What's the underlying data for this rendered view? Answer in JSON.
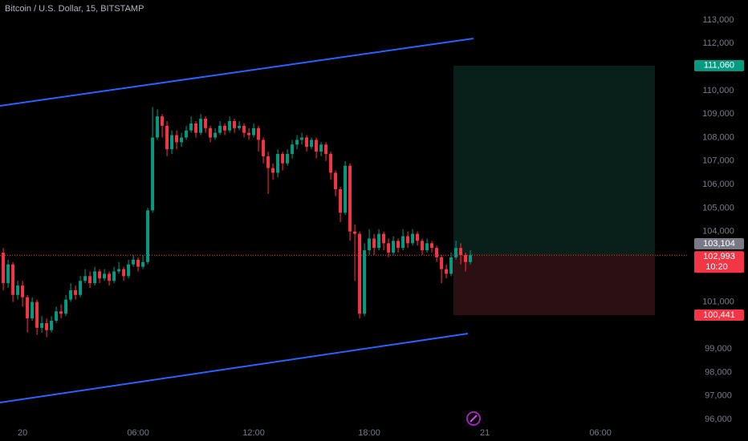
{
  "chart_data": {
    "type": "candlestick",
    "title": "Bitcoin / U.S. Dollar, 15, BITSTAMP",
    "up_color": "#089981",
    "down_color": "#f23645",
    "x": [
      -1,
      -0.75,
      -0.5,
      -0.25,
      0,
      0.25,
      0.5,
      0.75,
      1,
      1.25,
      1.5,
      1.75,
      2,
      2.25,
      2.5,
      2.75,
      3,
      3.25,
      3.5,
      3.75,
      4,
      4.25,
      4.5,
      4.75,
      5,
      5.25,
      5.5,
      5.75,
      6,
      6.25,
      6.5,
      6.75,
      7,
      7.25,
      7.5,
      7.75,
      8,
      8.25,
      8.5,
      8.75,
      9,
      9.25,
      9.5,
      9.75,
      10,
      10.25,
      10.5,
      10.75,
      11,
      11.25,
      11.5,
      11.75,
      12,
      12.25,
      12.5,
      12.75,
      13,
      13.25,
      13.5,
      13.75,
      14,
      14.25,
      14.5,
      14.75,
      15,
      15.25,
      15.5,
      15.75,
      16,
      16.25,
      16.5,
      16.75,
      17,
      17.25,
      17.5,
      17.75,
      18,
      18.25,
      18.5,
      18.75,
      19,
      19.25,
      19.5,
      19.75,
      20,
      20.25,
      20.5,
      20.75,
      21,
      21.25,
      21.5,
      21.75,
      22,
      22.25,
      22.5,
      22.75,
      23,
      23.25
    ],
    "open": [
      103100,
      101800,
      102600,
      101300,
      101700,
      101200,
      100300,
      101000,
      99900,
      100100,
      99800,
      100200,
      100600,
      100500,
      101100,
      101500,
      101300,
      101900,
      102100,
      101800,
      102300,
      102000,
      102200,
      101900,
      102300,
      102400,
      102100,
      102600,
      102800,
      102500,
      102700,
      104900,
      108000,
      108900,
      108500,
      107500,
      108100,
      107800,
      108000,
      108300,
      108600,
      108200,
      108800,
      108400,
      108000,
      108200,
      108500,
      108300,
      108700,
      108400,
      108500,
      108200,
      108100,
      108400,
      107900,
      107200,
      106700,
      106500,
      107300,
      106900,
      107300,
      107700,
      107900,
      108000,
      107600,
      107900,
      107400,
      107700,
      107300,
      106500,
      105800,
      104800,
      106800,
      104000,
      103900,
      100500,
      103200,
      103700,
      103300,
      103900,
      103500,
      103100,
      103600,
      103300,
      103800,
      103500,
      103900,
      103600,
      103200,
      103500,
      103300,
      102900,
      102400,
      102200,
      102900,
      103300,
      103000,
      102700
    ],
    "high": [
      103300,
      102800,
      102700,
      101900,
      101900,
      101300,
      101200,
      101100,
      100400,
      100300,
      100400,
      100800,
      100900,
      101300,
      101800,
      101700,
      102100,
      102400,
      102300,
      102500,
      102400,
      102400,
      102300,
      102500,
      102700,
      102500,
      102800,
      103000,
      102900,
      103000,
      105000,
      109300,
      109200,
      109000,
      108700,
      108300,
      108300,
      108200,
      108500,
      108900,
      108700,
      109000,
      108900,
      108500,
      108400,
      108700,
      108600,
      108900,
      108800,
      108700,
      108600,
      108400,
      108600,
      108500,
      108000,
      107400,
      106900,
      107500,
      107400,
      107500,
      107900,
      108100,
      108200,
      108100,
      108000,
      108000,
      107800,
      107800,
      107400,
      106600,
      105900,
      107000,
      106900,
      104300,
      104000,
      103500,
      104100,
      103900,
      104100,
      104000,
      103700,
      103800,
      103700,
      104100,
      104000,
      104100,
      104000,
      103700,
      103700,
      103600,
      103400,
      103000,
      102600,
      103100,
      103600,
      103500,
      103100,
      103200
    ],
    "low": [
      101500,
      101600,
      101000,
      101100,
      100800,
      99700,
      100200,
      99600,
      99700,
      99500,
      99700,
      100100,
      100300,
      100400,
      101000,
      101100,
      101200,
      101800,
      101600,
      101700,
      101800,
      101900,
      101700,
      101800,
      102200,
      101900,
      102000,
      102500,
      102300,
      102400,
      102600,
      104800,
      107900,
      108000,
      107200,
      107300,
      107500,
      107600,
      107900,
      108200,
      108000,
      108100,
      108200,
      107800,
      107900,
      108100,
      108100,
      108200,
      108200,
      108300,
      108000,
      107900,
      108000,
      107400,
      106900,
      105600,
      106200,
      106300,
      106600,
      106800,
      107100,
      107500,
      107700,
      107400,
      107500,
      107100,
      107200,
      107000,
      106200,
      105500,
      104400,
      104700,
      103600,
      101900,
      100300,
      100400,
      103000,
      103000,
      103200,
      103200,
      102900,
      103000,
      103100,
      103200,
      103300,
      103400,
      103400,
      103000,
      103100,
      103100,
      102700,
      101800,
      102000,
      102100,
      102800,
      102600,
      102300,
      102600
    ],
    "close": [
      101800,
      102600,
      101300,
      101700,
      101200,
      100300,
      101000,
      99900,
      100100,
      99800,
      100200,
      100600,
      100500,
      101100,
      101500,
      101300,
      101900,
      102100,
      101800,
      102300,
      102000,
      102200,
      101900,
      102300,
      102400,
      102100,
      102600,
      102800,
      102500,
      102700,
      104900,
      108000,
      108900,
      108500,
      107500,
      108100,
      107800,
      108000,
      108300,
      108600,
      108200,
      108800,
      108400,
      108000,
      108200,
      108500,
      108300,
      108700,
      108400,
      108500,
      108200,
      108100,
      108400,
      107900,
      107200,
      106700,
      106500,
      107300,
      106900,
      107300,
      107700,
      107900,
      108000,
      107600,
      107900,
      107400,
      107700,
      107300,
      106500,
      105800,
      104800,
      106800,
      104000,
      103900,
      100500,
      103200,
      103700,
      103300,
      103900,
      103500,
      103100,
      103600,
      103300,
      103800,
      103500,
      103900,
      103600,
      103200,
      103500,
      103300,
      102900,
      102400,
      102200,
      102900,
      103300,
      103000,
      102700,
      102993
    ],
    "xlim": [
      -1.17,
      34.58
    ],
    "xticks": [
      {
        "value": 0,
        "label": "20"
      },
      {
        "value": 6,
        "label": "06:00"
      },
      {
        "value": 12,
        "label": "12:00"
      },
      {
        "value": 18,
        "label": "18:00"
      },
      {
        "value": 24,
        "label": "21"
      },
      {
        "value": 30,
        "label": "06:00"
      }
    ],
    "ylim": [
      95765,
      113853
    ],
    "yticks": [
      {
        "value": 113000,
        "label": "113,000"
      },
      {
        "value": 112000,
        "label": "112,000"
      },
      {
        "value": 110000,
        "label": "110,000"
      },
      {
        "value": 109000,
        "label": "109,000"
      },
      {
        "value": 108000,
        "label": "108,000"
      },
      {
        "value": 107000,
        "label": "107,000"
      },
      {
        "value": 106000,
        "label": "106,000"
      },
      {
        "value": 105000,
        "label": "105,000"
      },
      {
        "value": 104000,
        "label": "104,000"
      },
      {
        "value": 101000,
        "label": "101,000"
      },
      {
        "value": 99000,
        "label": "99,000"
      },
      {
        "value": 98000,
        "label": "98,000"
      },
      {
        "value": 97000,
        "label": "97,000"
      },
      {
        "value": 96000,
        "label": "96,000"
      }
    ],
    "target": {
      "value": 111060,
      "label": "111,060",
      "color": "#089981"
    },
    "high_label": {
      "value": 103104,
      "label": "103,104",
      "color": "#787b86"
    },
    "last": {
      "value": 102993,
      "label": "102,993",
      "countdown": "10:20",
      "color": "#f23645"
    },
    "stop": {
      "value": 100441,
      "label": "100,441",
      "color": "#f23645"
    }
  }
}
